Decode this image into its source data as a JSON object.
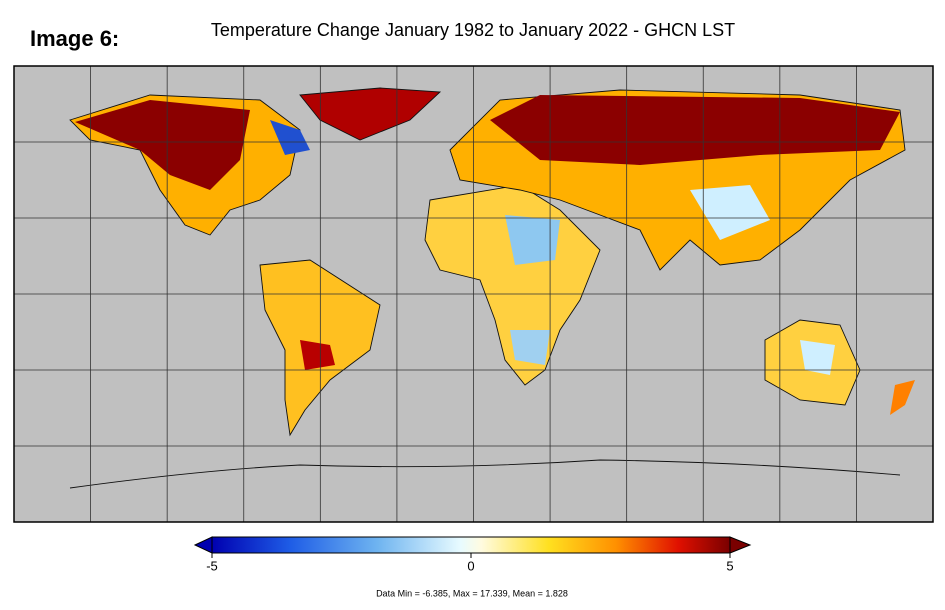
{
  "label": "Image 6:",
  "title": "Temperature Change January 1982 to January 2022 - GHCN LST",
  "colorbar": {
    "range": [
      -5,
      5
    ],
    "ticks": [
      -5,
      0,
      5
    ]
  },
  "stats": "Data Min = -6.385, Max = 17.339, Mean = 1.828"
}
